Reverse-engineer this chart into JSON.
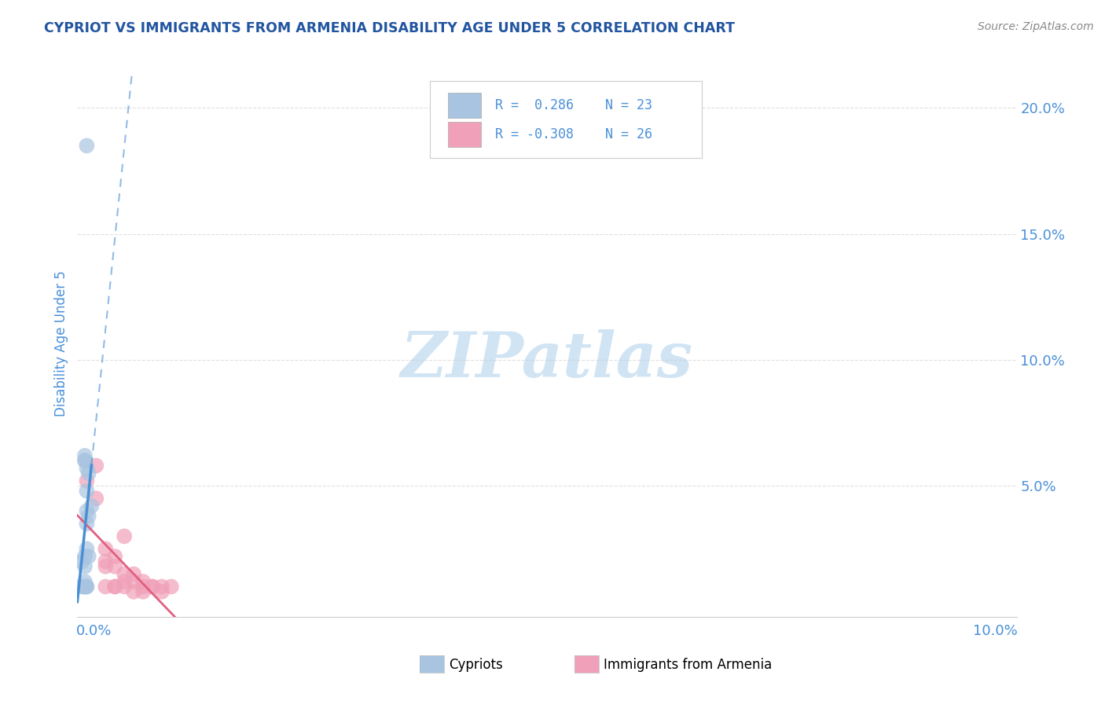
{
  "title": "CYPRIOT VS IMMIGRANTS FROM ARMENIA DISABILITY AGE UNDER 5 CORRELATION CHART",
  "source": "Source: ZipAtlas.com",
  "ylabel": "Disability Age Under 5",
  "legend_cypriot": "Cypriots",
  "legend_armenia": "Immigrants from Armenia",
  "r_cypriot": 0.286,
  "n_cypriot": 23,
  "r_armenia": -0.308,
  "n_armenia": 26,
  "cypriot_color": "#a8c4e0",
  "armenia_color": "#f0a0b8",
  "cypriot_line_color": "#4a8fd4",
  "armenia_line_color": "#e06080",
  "title_color": "#2255a0",
  "axis_label_color": "#4a90d9",
  "tick_color": "#4a90d9",
  "watermark_color": "#d0e4f4",
  "background_color": "#ffffff",
  "grid_color": "#cccccc",
  "xlim": [
    0.0,
    0.1
  ],
  "ylim": [
    -0.002,
    0.215
  ],
  "yticks": [
    0.05,
    0.1,
    0.15,
    0.2
  ],
  "ytick_labels": [
    "5.0%",
    "10.0%",
    "15.0%",
    "20.0%"
  ],
  "cypriot_x": [
    0.001,
    0.0008,
    0.001,
    0.0012,
    0.001,
    0.0008,
    0.0015,
    0.001,
    0.0008,
    0.0012,
    0.0008,
    0.001,
    0.0005,
    0.0008,
    0.001,
    0.0012,
    0.0008,
    0.0005,
    0.001,
    0.0008,
    0.0008,
    0.001,
    0.0008
  ],
  "cypriot_y": [
    0.185,
    0.06,
    0.057,
    0.055,
    0.048,
    0.062,
    0.042,
    0.04,
    0.06,
    0.038,
    0.022,
    0.025,
    0.02,
    0.018,
    0.035,
    0.022,
    0.012,
    0.01,
    0.01,
    0.01,
    0.01,
    0.01,
    0.01
  ],
  "armenia_x": [
    0.001,
    0.002,
    0.003,
    0.004,
    0.005,
    0.006,
    0.007,
    0.008,
    0.009,
    0.01,
    0.002,
    0.003,
    0.004,
    0.005,
    0.006,
    0.007,
    0.003,
    0.004,
    0.005,
    0.007,
    0.008,
    0.009,
    0.003,
    0.005,
    0.006,
    0.004
  ],
  "armenia_y": [
    0.052,
    0.045,
    0.025,
    0.022,
    0.03,
    0.015,
    0.012,
    0.01,
    0.01,
    0.01,
    0.058,
    0.018,
    0.01,
    0.015,
    0.012,
    0.01,
    0.02,
    0.018,
    0.012,
    0.008,
    0.01,
    0.008,
    0.01,
    0.01,
    0.008,
    0.01
  ]
}
